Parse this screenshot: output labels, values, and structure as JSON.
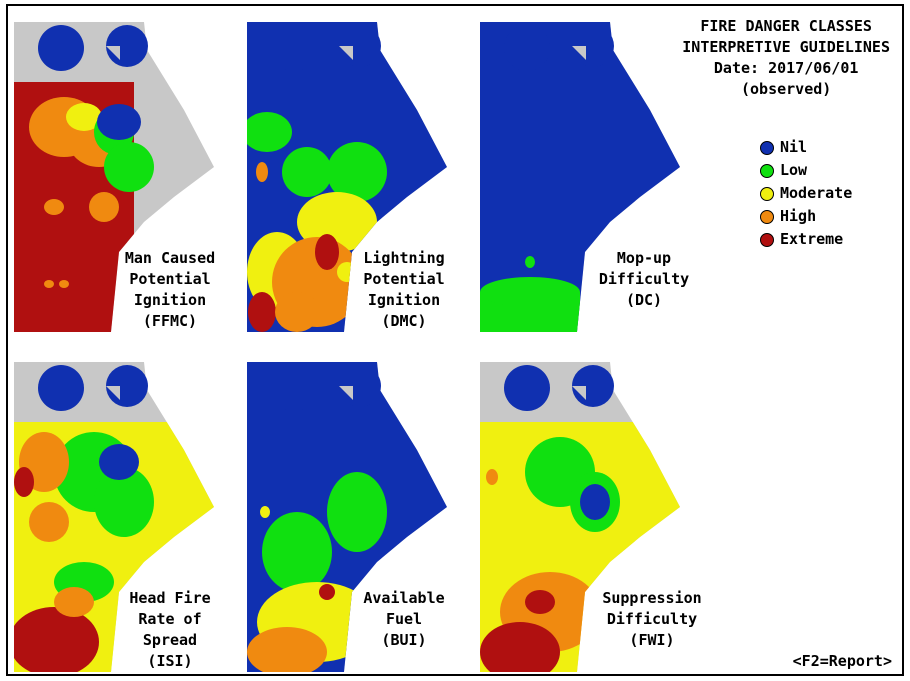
{
  "header": {
    "line1": "FIRE DANGER CLASSES",
    "line2": "INTERPRETIVE GUIDELINES",
    "date": "Date: 2017/06/01",
    "status": "(observed)"
  },
  "legend": [
    {
      "label": "Nil",
      "color": "#1030b0"
    },
    {
      "label": "Low",
      "color": "#10e010"
    },
    {
      "label": "Moderate",
      "color": "#f0f010"
    },
    {
      "label": "High",
      "color": "#f08a10"
    },
    {
      "label": "Extreme",
      "color": "#b01010"
    }
  ],
  "palette": {
    "land": "#c8c8c8",
    "nil": "#1030b0",
    "low": "#10e010",
    "moderate": "#f0f010",
    "high": "#f08a10",
    "extreme": "#b01010"
  },
  "maps": [
    {
      "id": "ffmc",
      "label_lines": [
        "Man Caused",
        "Potential",
        "Ignition",
        "(FFMC)"
      ]
    },
    {
      "id": "dmc",
      "label_lines": [
        "Lightning",
        "Potential",
        "Ignition",
        "(DMC)"
      ]
    },
    {
      "id": "dc",
      "label_lines": [
        "Mop-up",
        "Difficulty",
        "(DC)"
      ]
    },
    {
      "id": "isi",
      "label_lines": [
        "Head Fire",
        "Rate of",
        "Spread",
        "(ISI)"
      ]
    },
    {
      "id": "bui",
      "label_lines": [
        "Available",
        "Fuel",
        "(BUI)"
      ]
    },
    {
      "id": "fwi",
      "label_lines": [
        "Suppression",
        "Difficulty",
        "(FWI)"
      ]
    }
  ],
  "report_hint": "<F2=Report>"
}
